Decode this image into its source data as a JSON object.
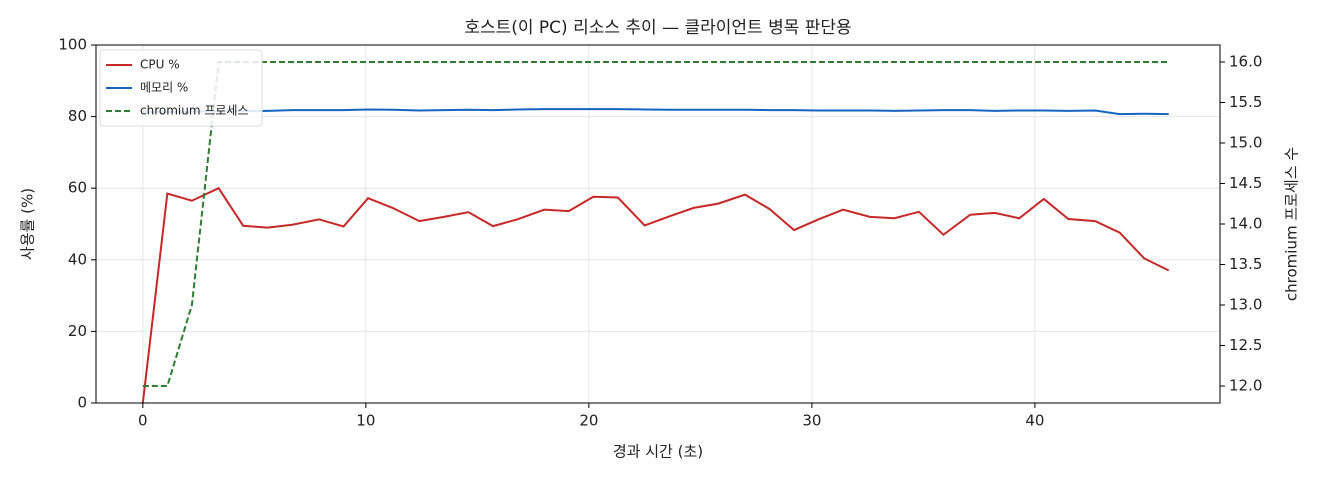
{
  "chart_data": {
    "type": "line",
    "title": "호스트(이 PC) 리소스 추이 — 클라이언트 병목 판단용",
    "xlabel": "경과 시간 (초)",
    "ylabel": "사용률 (%)",
    "y2label": "chromium 프로세스 수",
    "x": [
      0,
      1.1,
      2.2,
      3.4,
      4.5,
      5.6,
      6.7,
      7.9,
      9.0,
      10.1,
      11.2,
      12.4,
      13.5,
      14.6,
      15.7,
      16.8,
      18.0,
      19.1,
      20.2,
      21.3,
      22.5,
      23.6,
      24.7,
      25.8,
      27.0,
      28.1,
      29.2,
      30.3,
      31.4,
      32.6,
      33.7,
      34.8,
      35.9,
      37.1,
      38.2,
      39.3,
      40.4,
      41.5,
      42.7,
      43.8,
      44.9,
      46.0
    ],
    "series": [
      {
        "name": "CPU %",
        "color": "#c62828",
        "linestyle": "solid",
        "values": [
          0,
          58.5,
          56.5,
          60,
          49.5,
          49,
          49.8,
          51.3,
          49.3,
          57.2,
          54.5,
          50.8,
          52,
          53.3,
          49.4,
          51.3,
          54,
          53.6,
          57.6,
          57.4,
          49.6,
          52.1,
          54.5,
          55.7,
          58.2,
          54.2,
          48.3,
          51.3,
          54,
          52,
          51.6,
          53.4,
          47,
          52.6,
          53.1,
          51.6,
          57,
          51.4,
          50.8,
          47.6,
          40.4,
          37
        ]
      },
      {
        "name": "메모리 %",
        "color": "#1565c0",
        "linestyle": "solid",
        "values": [
          81.2,
          81.3,
          81.4,
          81.5,
          81.5,
          81.6,
          81.8,
          81.8,
          81.8,
          82,
          81.9,
          81.7,
          81.8,
          81.9,
          81.8,
          82,
          82.1,
          82.1,
          82.1,
          82.1,
          82,
          81.9,
          81.9,
          81.9,
          81.9,
          81.8,
          81.8,
          81.7,
          81.7,
          81.7,
          81.6,
          81.7,
          81.8,
          81.8,
          81.6,
          81.7,
          81.7,
          81.6,
          81.7,
          80.7,
          80.8,
          80.7
        ]
      },
      {
        "name": "chromium 프로세스",
        "color": "#2e7d32",
        "linestyle": "dashed",
        "axis": "y2",
        "values": [
          12,
          12,
          13,
          16,
          16,
          16,
          16,
          16,
          16,
          16,
          16,
          16,
          16,
          16,
          16,
          16,
          16,
          16,
          16,
          16,
          16,
          16,
          16,
          16,
          16,
          16,
          16,
          16,
          16,
          16,
          16,
          16,
          16,
          16,
          16,
          16,
          16,
          16,
          16,
          16,
          16,
          16
        ]
      }
    ],
    "xlim": [
      -2.1,
      48.3
    ],
    "xticks": [
      0,
      10,
      20,
      30,
      40
    ],
    "ylim": [
      0,
      100
    ],
    "yticks": [
      0,
      20,
      40,
      60,
      80,
      100
    ],
    "y2lim": [
      11.79,
      16.21
    ],
    "y2ticks": [
      {
        "value": 12,
        "label": "12.0"
      },
      {
        "value": 12.5,
        "label": "12.5"
      },
      {
        "value": 13,
        "label": "13.0"
      },
      {
        "value": 13.5,
        "label": "13.5"
      },
      {
        "value": 14,
        "label": "14.0"
      },
      {
        "value": 14.5,
        "label": "14.5"
      },
      {
        "value": 15,
        "label": "15.0"
      },
      {
        "value": 15.5,
        "label": "15.5"
      },
      {
        "value": 16,
        "label": "16.0"
      }
    ],
    "grid": true,
    "legend": "upper-left"
  }
}
